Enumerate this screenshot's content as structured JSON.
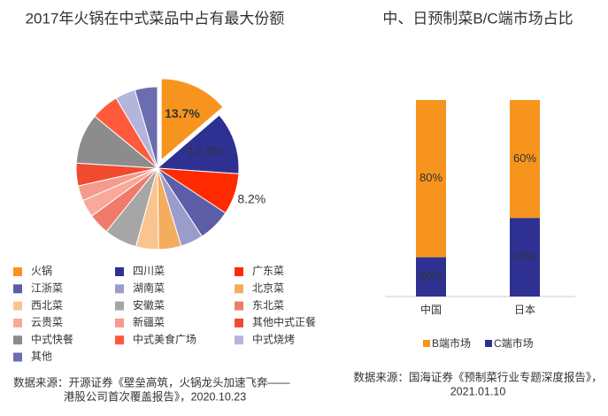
{
  "chart_data": [
    {
      "type": "pie",
      "title": "2017年火锅在中式菜品中占有最大份额",
      "categories": [
        "火锅",
        "四川菜",
        "广东菜",
        "江浙菜",
        "湖南菜",
        "北京菜",
        "西北菜",
        "安徽菜",
        "东北菜",
        "云贵菜",
        "新疆菜",
        "其他中式正餐",
        "中式快餐",
        "中式美食广场",
        "中式烧烤",
        "其他"
      ],
      "values": [
        13.7,
        12.4,
        8.2,
        6.5,
        4.5,
        4.5,
        4.5,
        6.5,
        4.2,
        3.5,
        3.0,
        4.5,
        10.0,
        5.5,
        4.0,
        4.5
      ],
      "value_labels": [
        "13.7%",
        "12.4%",
        "8.2%",
        null,
        null,
        null,
        null,
        null,
        null,
        null,
        null,
        null,
        null,
        null,
        null,
        null
      ],
      "colors": [
        "#f7941d",
        "#2e3192",
        "#ff2a00",
        "#5b5ea6",
        "#9a9ccc",
        "#f4ad5f",
        "#fbc48e",
        "#a6a6a6",
        "#f07b6b",
        "#f9a89a",
        "#f59b8b",
        "#f04b2f",
        "#8c8c8c",
        "#ff5a3c",
        "#b4b5dc",
        "#6b6db0"
      ],
      "source": [
        "数据来源：开源证券《壁垒高筑，火锅龙头加速飞奔——",
        "港股公司首次覆盖报告》，2020.10.23"
      ]
    },
    {
      "type": "stacked_bar",
      "title": "中、日预制菜B/C端市场占比",
      "categories": [
        "中国",
        "日本"
      ],
      "series": [
        {
          "name": "B端市场",
          "color": "#f7941d",
          "values": [
            80,
            60
          ],
          "value_labels": [
            "80%",
            "60%"
          ]
        },
        {
          "name": "C端市场",
          "color": "#2e3192",
          "values": [
            20,
            40
          ],
          "value_labels": [
            "20%",
            "40%"
          ]
        }
      ],
      "ylim": [
        0,
        100
      ],
      "source": [
        "数据来源：国海证券《预制菜行业专题深度报告》，",
        "2021.01.10"
      ]
    }
  ]
}
